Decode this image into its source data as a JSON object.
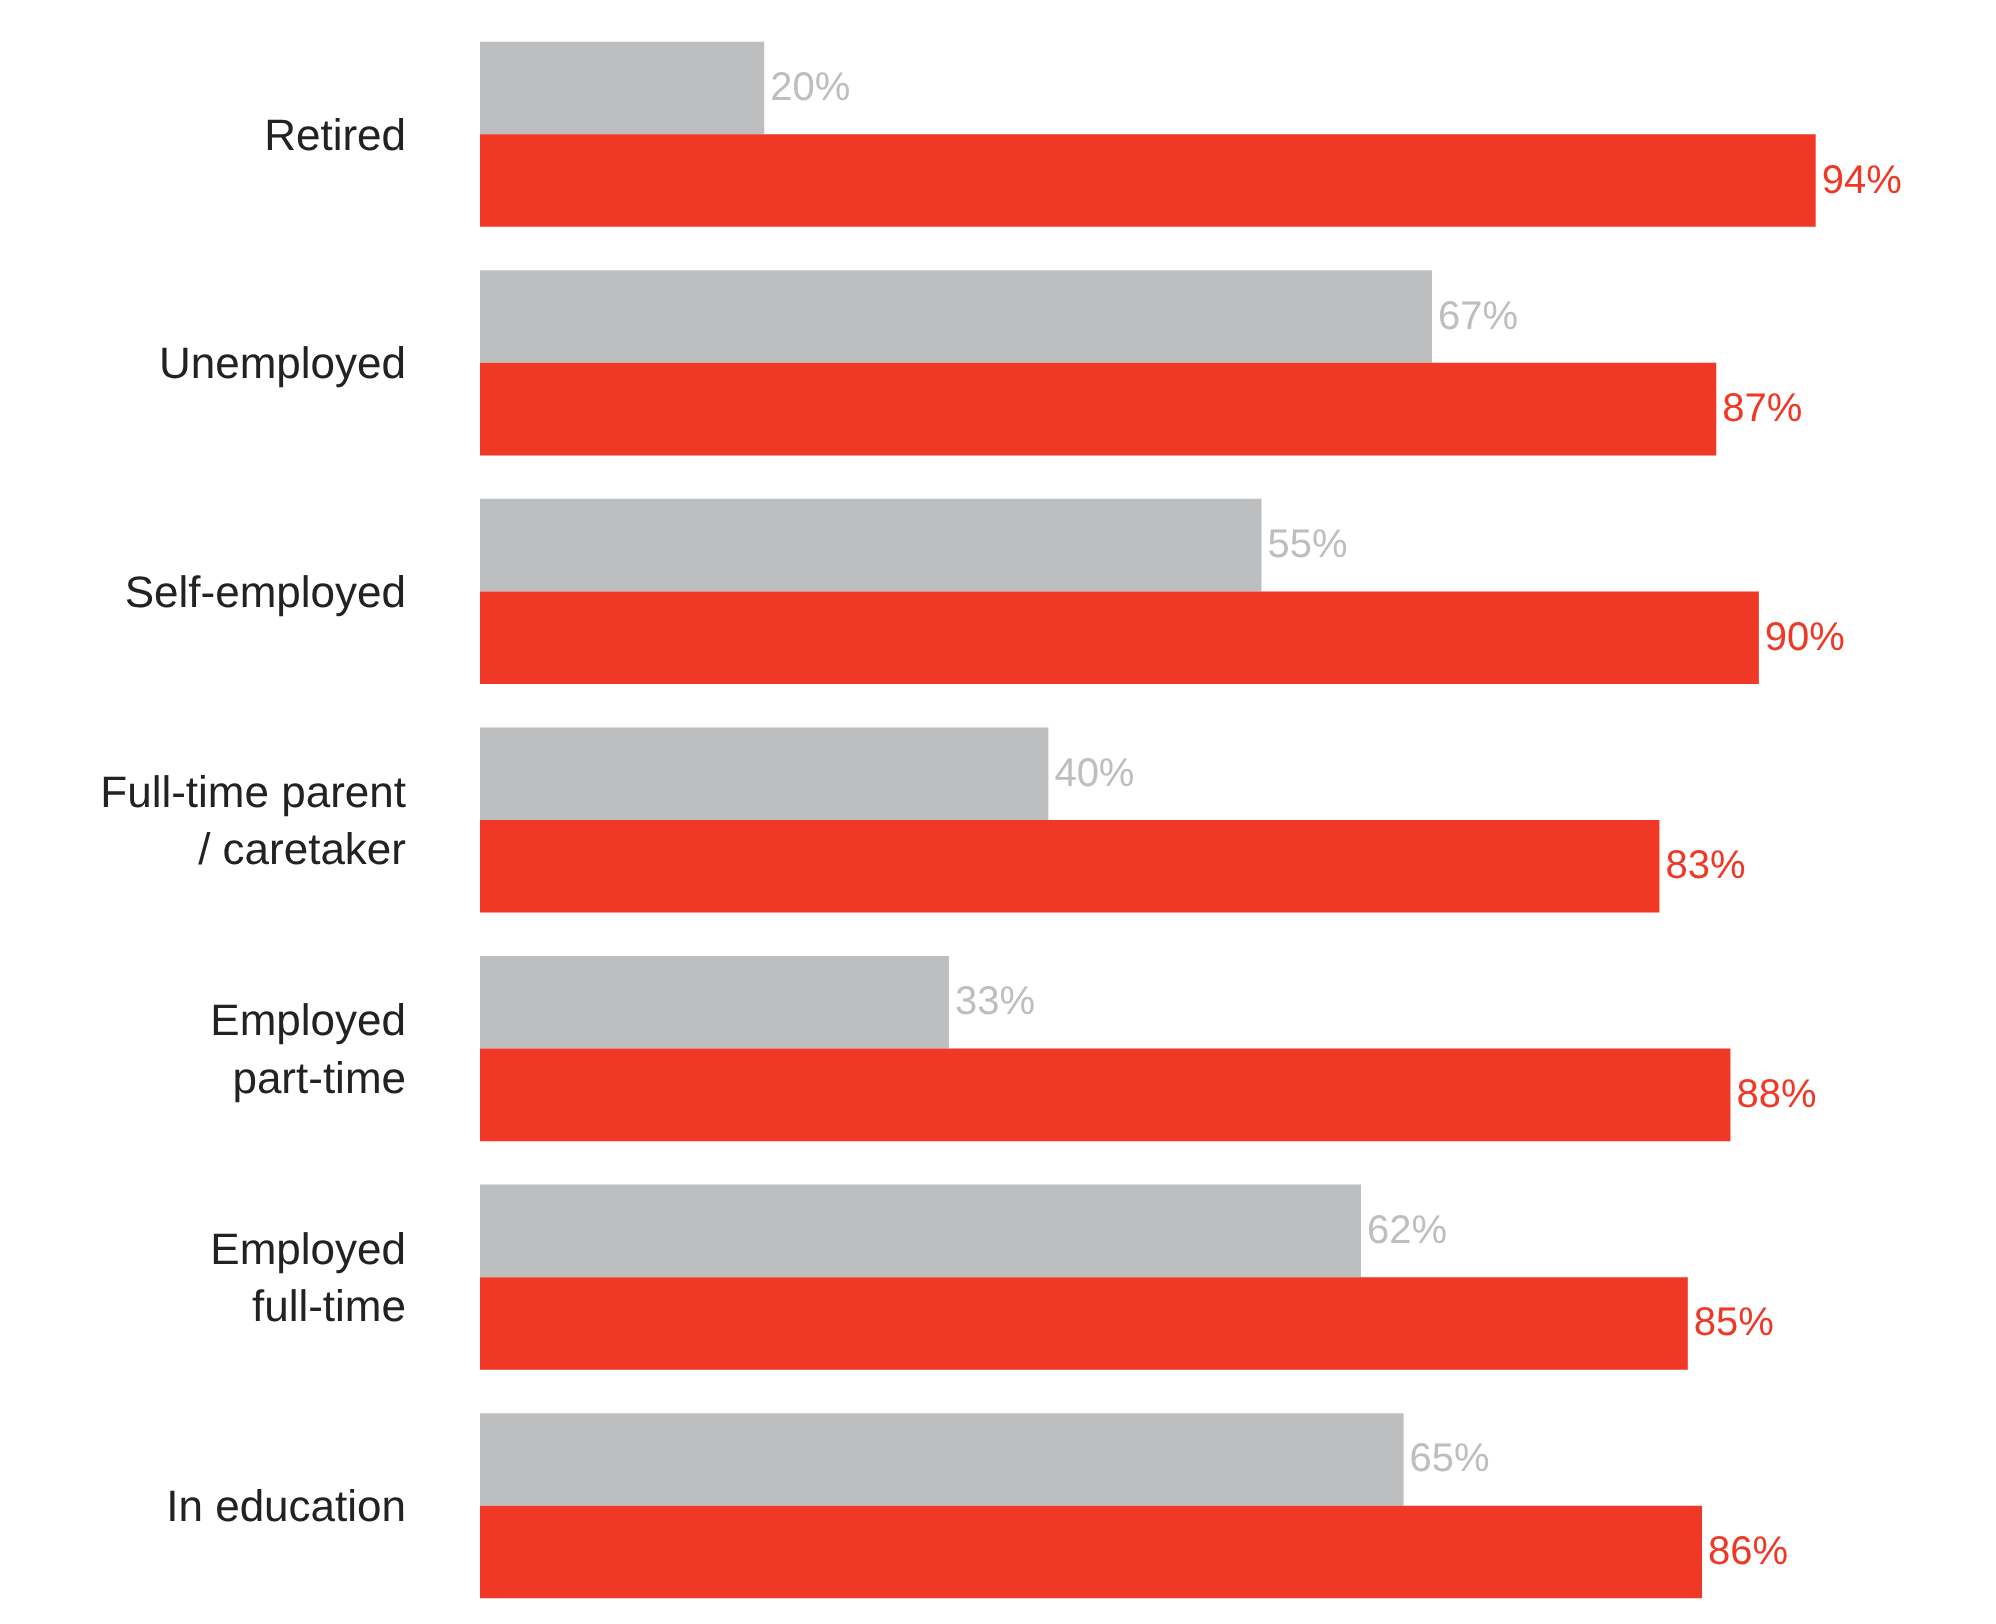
{
  "chart_data": {
    "type": "bar",
    "orientation": "horizontal",
    "categories": [
      "Retired",
      "Unemployed",
      "Self-employed",
      "Full-time parent\n/ caretaker",
      "Employed\npart-time",
      "Employed\nfull-time",
      "In education"
    ],
    "series": [
      {
        "color": "#bcbec0",
        "values": [
          20,
          67,
          55,
          40,
          33,
          62,
          65
        ],
        "value_labels": [
          "20%",
          "67%",
          "55%",
          "40%",
          "33%",
          "62%",
          "65%"
        ]
      },
      {
        "color": "#ef3826",
        "values": [
          94,
          87,
          90,
          83,
          88,
          85,
          86
        ],
        "value_labels": [
          "94%",
          "87%",
          "90%",
          "83%",
          "88%",
          "85%",
          "86%"
        ]
      }
    ]
  }
}
